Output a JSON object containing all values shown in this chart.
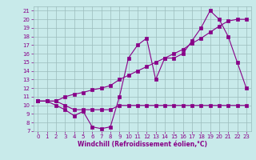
{
  "line1_x": [
    0,
    1,
    2,
    3,
    4,
    5,
    6,
    7,
    8,
    9,
    10,
    11,
    12,
    13,
    14,
    15,
    16,
    17,
    18,
    19,
    20,
    21,
    22,
    23
  ],
  "line1_y": [
    10.5,
    10.5,
    10.5,
    11.0,
    11.3,
    11.5,
    11.8,
    12.0,
    12.3,
    13.0,
    13.5,
    14.0,
    14.5,
    15.0,
    15.5,
    16.0,
    16.5,
    17.2,
    17.8,
    18.5,
    19.2,
    19.8,
    20.0,
    20.0
  ],
  "line2_x": [
    0,
    1,
    2,
    3,
    4,
    5,
    6,
    7,
    8,
    9,
    10,
    11,
    12,
    13,
    14,
    15,
    16,
    17,
    18,
    19,
    20,
    21,
    22,
    23
  ],
  "line2_y": [
    10.5,
    10.5,
    10.0,
    9.5,
    8.8,
    9.3,
    7.5,
    7.3,
    7.5,
    11.0,
    15.5,
    17.0,
    17.8,
    13.0,
    15.5,
    15.5,
    16.0,
    17.5,
    19.0,
    21.0,
    20.0,
    18.0,
    15.0,
    12.0
  ],
  "line3_x": [
    0,
    1,
    2,
    3,
    4,
    5,
    6,
    7,
    8,
    9,
    10,
    11,
    12,
    13,
    14,
    15,
    16,
    17,
    18,
    19,
    20,
    21,
    22,
    23
  ],
  "line3_y": [
    10.5,
    10.5,
    10.5,
    10.0,
    9.5,
    9.5,
    9.5,
    9.5,
    9.5,
    10.0,
    10.0,
    10.0,
    10.0,
    10.0,
    10.0,
    10.0,
    10.0,
    10.0,
    10.0,
    10.0,
    10.0,
    10.0,
    10.0,
    10.0
  ],
  "line_color": "#880088",
  "bg_color": "#c8eaea",
  "grid_color": "#9bbcbc",
  "xlabel": "Windchill (Refroidissement éolien,°C)",
  "xlim": [
    -0.5,
    23.5
  ],
  "ylim": [
    7,
    21.5
  ],
  "xticks": [
    0,
    1,
    2,
    3,
    4,
    5,
    6,
    7,
    8,
    9,
    10,
    11,
    12,
    13,
    14,
    15,
    16,
    17,
    18,
    19,
    20,
    21,
    22,
    23
  ],
  "yticks": [
    7,
    8,
    9,
    10,
    11,
    12,
    13,
    14,
    15,
    16,
    17,
    18,
    19,
    20,
    21
  ],
  "marker_size": 2.5,
  "linewidth": 0.8,
  "tick_fontsize": 5,
  "xlabel_fontsize": 5.5
}
